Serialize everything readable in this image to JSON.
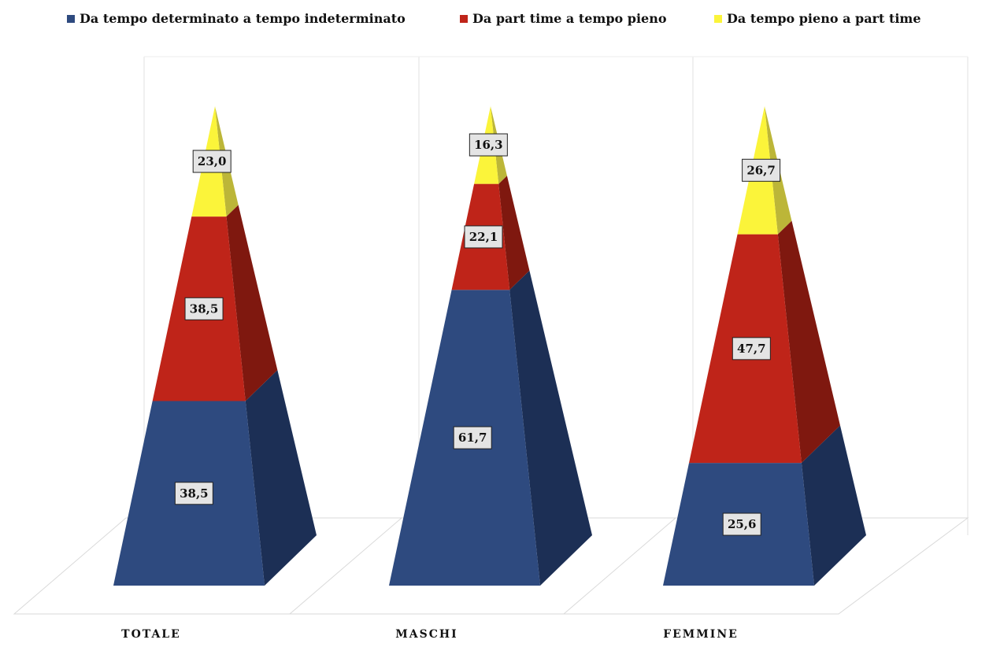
{
  "chart_data": {
    "type": "bar",
    "subtype": "stacked-pyramid-3d",
    "categories": [
      "TOTALE",
      "MASCHI",
      "FEMMINE"
    ],
    "series": [
      {
        "name": "Da tempo determinato a tempo indeterminato",
        "color": "#2e4a7f",
        "side_color": "#1c2f55",
        "values": [
          38.5,
          61.7,
          25.6
        ]
      },
      {
        "name": "Da part time a tempo pieno",
        "color": "#bf2419",
        "side_color": "#7f180f",
        "values": [
          38.5,
          22.1,
          47.7
        ]
      },
      {
        "name": "Da tempo pieno a part time",
        "color": "#fbf43a",
        "side_color": "#bcb638",
        "values": [
          23.0,
          16.3,
          26.7
        ]
      }
    ],
    "data_labels": [
      [
        "38,5",
        "61,7",
        "25,6"
      ],
      [
        "38,5",
        "22,1",
        "47,7"
      ],
      [
        "23,0",
        "16,3",
        "26,7"
      ]
    ],
    "ylim": [
      0,
      100
    ],
    "legend_position": "top",
    "grid": false,
    "title": "",
    "xlabel": "",
    "ylabel": ""
  }
}
